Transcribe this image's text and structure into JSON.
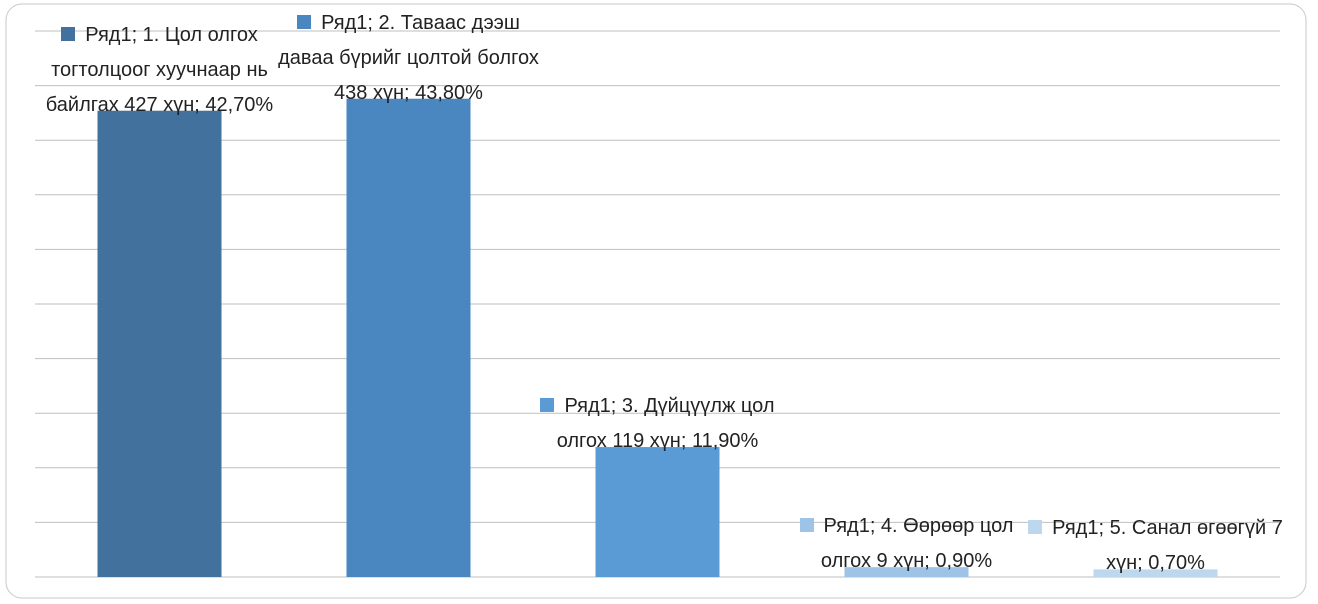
{
  "chart_data": {
    "type": "bar",
    "categories": [
      null,
      null,
      null,
      null,
      null
    ],
    "values": [
      42.7,
      43.8,
      11.9,
      0.9,
      0.7
    ],
    "value_labels": [
      "Ряд1; 1. Цол олгох тогтолцоог хуучнаар нь байлгах 427 хүн; 42,70%",
      "Ряд1; 2. Тавaac дээш даваа бүрийг цолтой болгох 438 хүн; 43,80%",
      "Ряд1; 3. Дүйцүүлж цол олгох 119 хүн; 11,90%",
      "Ряд1; 4. Өөрөөр цол олгох 9 хүн; 0,90%",
      "Ряд1; 5. Санал өгөөгүй 7 хүн; 0,70%"
    ],
    "colors": [
      "#41719c",
      "#4a87c0",
      "#5b9bd5",
      "#9dc3e6",
      "#bdd7ee"
    ],
    "ylim": [
      0,
      50
    ],
    "yticks": [
      0,
      5,
      10,
      15,
      20,
      25,
      30,
      35,
      40,
      45,
      50
    ],
    "grid": true
  }
}
